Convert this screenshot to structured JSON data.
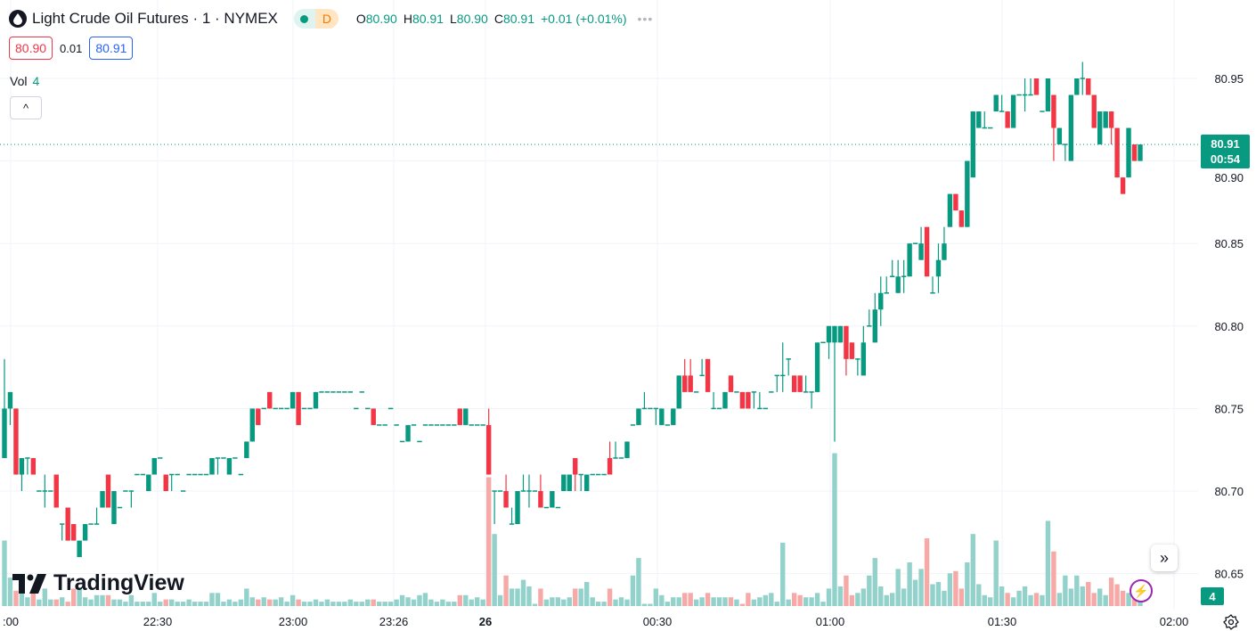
{
  "header": {
    "title": "Light Crude Oil Futures · 1 · NYMEX",
    "badge_letter": "D",
    "ohlc": [
      {
        "k": "O",
        "v": "80.90"
      },
      {
        "k": "H",
        "v": "80.91"
      },
      {
        "k": "L",
        "v": "80.90"
      },
      {
        "k": "C",
        "v": "80.91"
      }
    ],
    "change": "+0.01 (+0.01%)",
    "more": "•••"
  },
  "quote": {
    "bid": "80.90",
    "spread": "0.01",
    "ask": "80.91"
  },
  "volume_legend": {
    "label": "Vol",
    "value": "4"
  },
  "collapse_label": "^",
  "brand": "TradingView",
  "last_price": {
    "price": "80.91",
    "countdown": "00:54"
  },
  "last_volume": "4",
  "colors": {
    "up": "#089981",
    "down": "#f23645",
    "vol_up": "#92d2cb",
    "vol_down": "#f7a9a8"
  },
  "chart_data": {
    "type": "candlestick",
    "symbol": "Light Crude Oil Futures",
    "interval": "1",
    "exchange": "NYMEX",
    "ylim": [
      80.63,
      80.965
    ],
    "yticks": [
      "80.95",
      "80.90",
      "80.85",
      "80.80",
      "80.75",
      "80.70",
      "80.65"
    ],
    "xticks": [
      ":00",
      "22:30",
      "23:00",
      "23:26",
      "26",
      "00:30",
      "01:00",
      "01:30",
      "02:00"
    ],
    "current_price": 80.91,
    "candles_ohlcv": [
      [
        80.72,
        80.78,
        80.72,
        80.75,
        30
      ],
      [
        80.75,
        80.76,
        80.74,
        80.76,
        13
      ],
      [
        80.75,
        80.75,
        80.71,
        80.71,
        7
      ],
      [
        80.71,
        80.72,
        80.7,
        80.72,
        8
      ],
      [
        80.72,
        80.72,
        80.71,
        80.72,
        4
      ],
      [
        80.72,
        80.72,
        80.71,
        80.71,
        7
      ],
      [
        80.7,
        80.7,
        80.7,
        80.7,
        3
      ],
      [
        80.7,
        80.71,
        80.69,
        80.7,
        8
      ],
      [
        80.7,
        80.7,
        80.7,
        80.7,
        3
      ],
      [
        80.71,
        80.71,
        80.69,
        80.69,
        3
      ],
      [
        80.68,
        80.68,
        80.67,
        80.68,
        4
      ],
      [
        80.69,
        80.69,
        80.67,
        80.67,
        2
      ],
      [
        80.68,
        80.68,
        80.67,
        80.67,
        8
      ],
      [
        80.66,
        80.67,
        80.66,
        80.67,
        8
      ],
      [
        80.67,
        80.68,
        80.67,
        80.68,
        4
      ],
      [
        80.68,
        80.68,
        80.68,
        80.68,
        3
      ],
      [
        80.68,
        80.69,
        80.68,
        80.68,
        5
      ],
      [
        80.69,
        80.7,
        80.69,
        80.7,
        5
      ],
      [
        80.71,
        80.71,
        80.69,
        80.69,
        5
      ],
      [
        80.68,
        80.7,
        80.68,
        80.7,
        3
      ],
      [
        80.69,
        80.69,
        80.69,
        80.69,
        3
      ],
      [
        80.7,
        80.7,
        80.7,
        80.7,
        2
      ],
      [
        80.7,
        80.7,
        80.69,
        80.7,
        5
      ],
      [
        80.71,
        80.71,
        80.71,
        80.71,
        2
      ],
      [
        80.71,
        80.71,
        80.71,
        80.71,
        2
      ],
      [
        80.7,
        80.71,
        80.7,
        80.71,
        2
      ],
      [
        80.71,
        80.72,
        80.71,
        80.72,
        6
      ],
      [
        80.72,
        80.72,
        80.72,
        80.72,
        2
      ],
      [
        80.71,
        80.71,
        80.7,
        80.7,
        3
      ],
      [
        80.71,
        80.71,
        80.7,
        80.71,
        3
      ],
      [
        80.71,
        80.71,
        80.71,
        80.71,
        2
      ],
      [
        80.7,
        80.7,
        80.7,
        80.7,
        2
      ],
      [
        80.71,
        80.71,
        80.71,
        80.71,
        3
      ],
      [
        80.71,
        80.71,
        80.71,
        80.71,
        2
      ],
      [
        80.71,
        80.71,
        80.71,
        80.71,
        2
      ],
      [
        80.71,
        80.71,
        80.71,
        80.71,
        2
      ],
      [
        80.71,
        80.72,
        80.71,
        80.72,
        6
      ],
      [
        80.72,
        80.72,
        80.71,
        80.72,
        6
      ],
      [
        80.72,
        80.72,
        80.72,
        80.72,
        2
      ],
      [
        80.71,
        80.72,
        80.71,
        80.72,
        3
      ],
      [
        80.72,
        80.72,
        80.72,
        80.72,
        2
      ],
      [
        80.71,
        80.71,
        80.71,
        80.71,
        3
      ],
      [
        80.72,
        80.73,
        80.72,
        80.73,
        8
      ],
      [
        80.73,
        80.75,
        80.73,
        80.75,
        4
      ],
      [
        80.75,
        80.75,
        80.74,
        80.74,
        3
      ],
      [
        80.75,
        80.75,
        80.75,
        80.75,
        4
      ],
      [
        80.76,
        80.76,
        80.75,
        80.75,
        3
      ],
      [
        80.75,
        80.75,
        80.75,
        80.75,
        3
      ],
      [
        80.75,
        80.75,
        80.75,
        80.75,
        4
      ],
      [
        80.75,
        80.75,
        80.75,
        80.75,
        2
      ],
      [
        80.75,
        80.76,
        80.75,
        80.76,
        5
      ],
      [
        80.76,
        80.76,
        80.74,
        80.74,
        3
      ],
      [
        80.75,
        80.75,
        80.75,
        80.75,
        2
      ],
      [
        80.75,
        80.75,
        80.75,
        80.75,
        2
      ],
      [
        80.75,
        80.76,
        80.75,
        80.76,
        3
      ],
      [
        80.76,
        80.76,
        80.76,
        80.76,
        2
      ],
      [
        80.76,
        80.76,
        80.76,
        80.76,
        3
      ],
      [
        80.76,
        80.76,
        80.76,
        80.76,
        2
      ],
      [
        80.76,
        80.76,
        80.76,
        80.76,
        2
      ],
      [
        80.76,
        80.76,
        80.76,
        80.76,
        2
      ],
      [
        80.76,
        80.76,
        80.76,
        80.76,
        3
      ],
      [
        80.75,
        80.75,
        80.75,
        80.75,
        2
      ],
      [
        80.76,
        80.76,
        80.76,
        80.76,
        2
      ],
      [
        80.75,
        80.75,
        80.75,
        80.75,
        3
      ],
      [
        80.75,
        80.75,
        80.74,
        80.74,
        3
      ],
      [
        80.74,
        80.74,
        80.74,
        80.74,
        2
      ],
      [
        80.74,
        80.74,
        80.74,
        80.74,
        2
      ],
      [
        80.75,
        80.75,
        80.75,
        80.75,
        2
      ],
      [
        80.74,
        80.74,
        80.74,
        80.74,
        3
      ],
      [
        80.73,
        80.73,
        80.73,
        80.73,
        5
      ],
      [
        80.73,
        80.74,
        80.73,
        80.74,
        4
      ],
      [
        80.74,
        80.74,
        80.74,
        80.74,
        3
      ],
      [
        80.73,
        80.73,
        80.73,
        80.73,
        5
      ],
      [
        80.74,
        80.74,
        80.74,
        80.74,
        6
      ],
      [
        80.74,
        80.74,
        80.74,
        80.74,
        3
      ],
      [
        80.74,
        80.74,
        80.74,
        80.74,
        2
      ],
      [
        80.74,
        80.74,
        80.74,
        80.74,
        3
      ],
      [
        80.74,
        80.74,
        80.74,
        80.74,
        2
      ],
      [
        80.74,
        80.74,
        80.74,
        80.74,
        2
      ],
      [
        80.75,
        80.75,
        80.74,
        80.74,
        5
      ],
      [
        80.74,
        80.75,
        80.74,
        80.75,
        5
      ],
      [
        80.74,
        80.74,
        80.74,
        80.74,
        3
      ],
      [
        80.74,
        80.74,
        80.74,
        80.74,
        4
      ],
      [
        80.74,
        80.74,
        80.74,
        80.74,
        3
      ],
      [
        80.74,
        80.75,
        80.71,
        80.71,
        59
      ],
      [
        80.7,
        80.7,
        80.68,
        80.7,
        33
      ],
      [
        80.7,
        80.7,
        80.7,
        80.7,
        5
      ],
      [
        80.7,
        80.71,
        80.69,
        80.69,
        14
      ],
      [
        80.68,
        80.69,
        80.68,
        80.68,
        8
      ],
      [
        80.68,
        80.7,
        80.68,
        80.7,
        8
      ],
      [
        80.7,
        80.71,
        80.7,
        80.7,
        12
      ],
      [
        80.7,
        80.71,
        80.69,
        80.7,
        9
      ],
      [
        80.7,
        80.7,
        80.7,
        80.7,
        1
      ],
      [
        80.7,
        80.71,
        80.69,
        80.69,
        8
      ],
      [
        80.69,
        80.69,
        80.69,
        80.69,
        3
      ],
      [
        80.69,
        80.7,
        80.69,
        80.7,
        4
      ],
      [
        80.69,
        80.69,
        80.69,
        80.69,
        4
      ],
      [
        80.7,
        80.71,
        80.7,
        80.71,
        3
      ],
      [
        80.7,
        80.71,
        80.7,
        80.71,
        4
      ],
      [
        80.72,
        80.72,
        80.7,
        80.71,
        8
      ],
      [
        80.71,
        80.71,
        80.7,
        80.71,
        8
      ],
      [
        80.7,
        80.71,
        80.7,
        80.71,
        11
      ],
      [
        80.71,
        80.71,
        80.71,
        80.71,
        4
      ],
      [
        80.71,
        80.71,
        80.71,
        80.71,
        2
      ],
      [
        80.71,
        80.71,
        80.71,
        80.71,
        2
      ],
      [
        80.72,
        80.73,
        80.71,
        80.71,
        8
      ],
      [
        80.72,
        80.73,
        80.72,
        80.72,
        3
      ],
      [
        80.72,
        80.72,
        80.72,
        80.72,
        4
      ],
      [
        80.72,
        80.73,
        80.72,
        80.73,
        3
      ],
      [
        80.74,
        80.74,
        80.74,
        80.74,
        14
      ],
      [
        80.74,
        80.75,
        80.74,
        80.75,
        22
      ],
      [
        80.75,
        80.76,
        80.75,
        80.75,
        1
      ],
      [
        80.75,
        80.75,
        80.75,
        80.75,
        1
      ],
      [
        80.75,
        80.75,
        80.74,
        80.75,
        8
      ],
      [
        80.74,
        80.75,
        80.74,
        80.75,
        5
      ],
      [
        80.74,
        80.74,
        80.74,
        80.74,
        2
      ],
      [
        80.74,
        80.75,
        80.74,
        80.75,
        4
      ],
      [
        80.75,
        80.77,
        80.75,
        80.77,
        4
      ],
      [
        80.77,
        80.78,
        80.76,
        80.76,
        6
      ],
      [
        80.77,
        80.78,
        80.76,
        80.76,
        6
      ],
      [
        80.76,
        80.76,
        80.76,
        80.76,
        3
      ],
      [
        80.77,
        80.78,
        80.77,
        80.77,
        4
      ],
      [
        80.78,
        80.78,
        80.76,
        80.76,
        6
      ],
      [
        80.75,
        80.76,
        80.75,
        80.75,
        4
      ],
      [
        80.75,
        80.75,
        80.75,
        80.75,
        4
      ],
      [
        80.75,
        80.76,
        80.75,
        80.76,
        4
      ],
      [
        80.77,
        80.77,
        80.76,
        80.76,
        4
      ],
      [
        80.76,
        80.76,
        80.76,
        80.76,
        3
      ],
      [
        80.76,
        80.76,
        80.75,
        80.75,
        1
      ],
      [
        80.76,
        80.76,
        80.75,
        80.75,
        6
      ],
      [
        80.76,
        80.76,
        80.75,
        80.76,
        3
      ],
      [
        80.75,
        80.76,
        80.75,
        80.75,
        4
      ],
      [
        80.75,
        80.75,
        80.75,
        80.75,
        5
      ],
      [
        80.76,
        80.76,
        80.76,
        80.76,
        6
      ],
      [
        80.77,
        80.77,
        80.76,
        80.77,
        2
      ],
      [
        80.77,
        80.79,
        80.76,
        80.77,
        29
      ],
      [
        80.78,
        80.78,
        80.77,
        80.78,
        3
      ],
      [
        80.77,
        80.77,
        80.76,
        80.76,
        6
      ],
      [
        80.77,
        80.77,
        80.76,
        80.76,
        5
      ],
      [
        80.76,
        80.77,
        80.76,
        80.76,
        4
      ],
      [
        80.76,
        80.76,
        80.75,
        80.76,
        4
      ],
      [
        80.76,
        80.79,
        80.76,
        80.79,
        6
      ],
      [
        80.79,
        80.79,
        80.79,
        80.79,
        2
      ],
      [
        80.79,
        80.8,
        80.78,
        80.8,
        8
      ],
      [
        80.79,
        80.8,
        80.73,
        80.8,
        70
      ],
      [
        80.79,
        80.8,
        80.79,
        80.8,
        9
      ],
      [
        80.8,
        80.8,
        80.77,
        80.78,
        14
      ],
      [
        80.79,
        80.79,
        80.78,
        80.78,
        5
      ],
      [
        80.78,
        80.78,
        80.77,
        80.78,
        6
      ],
      [
        80.77,
        80.8,
        80.77,
        80.79,
        8
      ],
      [
        80.8,
        80.81,
        80.8,
        80.8,
        14
      ],
      [
        80.79,
        80.82,
        80.79,
        80.81,
        22
      ],
      [
        80.81,
        80.83,
        80.8,
        80.82,
        9
      ],
      [
        80.82,
        80.83,
        80.82,
        80.82,
        5
      ],
      [
        80.83,
        80.84,
        80.83,
        80.83,
        6
      ],
      [
        80.82,
        80.84,
        80.82,
        80.83,
        17
      ],
      [
        80.83,
        80.84,
        80.82,
        80.83,
        8
      ],
      [
        80.83,
        80.85,
        80.83,
        80.85,
        20
      ],
      [
        80.85,
        80.85,
        80.85,
        80.85,
        12
      ],
      [
        80.84,
        80.86,
        80.84,
        80.85,
        17
      ],
      [
        80.86,
        80.86,
        80.83,
        80.83,
        31
      ],
      [
        80.82,
        80.83,
        80.82,
        80.82,
        10
      ],
      [
        80.83,
        80.85,
        80.82,
        80.84,
        11
      ],
      [
        80.84,
        80.86,
        80.84,
        80.85,
        7
      ],
      [
        80.86,
        80.88,
        80.86,
        80.88,
        15
      ],
      [
        80.88,
        80.88,
        80.87,
        80.87,
        16
      ],
      [
        80.87,
        80.87,
        80.86,
        80.86,
        8
      ],
      [
        80.86,
        80.9,
        80.86,
        80.9,
        20
      ],
      [
        80.89,
        80.93,
        80.89,
        80.93,
        33
      ],
      [
        80.92,
        80.93,
        80.92,
        80.93,
        10
      ],
      [
        80.92,
        80.93,
        80.92,
        80.92,
        5
      ],
      [
        80.92,
        80.92,
        80.92,
        80.92,
        4
      ],
      [
        80.93,
        80.94,
        80.93,
        80.94,
        30
      ],
      [
        80.93,
        80.94,
        80.93,
        80.93,
        9
      ],
      [
        80.93,
        80.93,
        80.92,
        80.92,
        6
      ],
      [
        80.92,
        80.94,
        80.92,
        80.94,
        4
      ],
      [
        80.94,
        80.94,
        80.94,
        80.94,
        7
      ],
      [
        80.94,
        80.95,
        80.93,
        80.94,
        9
      ],
      [
        80.94,
        80.95,
        80.94,
        80.94,
        5
      ],
      [
        80.95,
        80.95,
        80.94,
        80.94,
        6
      ],
      [
        80.93,
        80.93,
        80.93,
        80.93,
        5
      ],
      [
        80.93,
        80.95,
        80.93,
        80.95,
        39
      ],
      [
        80.94,
        80.94,
        80.9,
        80.92,
        25
      ],
      [
        80.91,
        80.92,
        80.91,
        80.92,
        6
      ],
      [
        80.91,
        80.91,
        80.9,
        80.91,
        14
      ],
      [
        80.9,
        80.94,
        80.9,
        80.94,
        8
      ],
      [
        80.94,
        80.95,
        80.94,
        80.95,
        14
      ],
      [
        80.95,
        80.96,
        80.94,
        80.95,
        9
      ],
      [
        80.95,
        80.95,
        80.94,
        80.94,
        11
      ],
      [
        80.94,
        80.94,
        80.92,
        80.92,
        6
      ],
      [
        80.91,
        80.93,
        80.91,
        80.93,
        8
      ],
      [
        80.92,
        80.93,
        80.92,
        80.93,
        5
      ],
      [
        80.93,
        80.93,
        80.91,
        80.92,
        13
      ],
      [
        80.92,
        80.92,
        80.89,
        80.89,
        10
      ],
      [
        80.89,
        80.89,
        80.88,
        80.88,
        7
      ],
      [
        80.89,
        80.92,
        80.89,
        80.92,
        6
      ],
      [
        80.91,
        80.91,
        80.9,
        80.9,
        6
      ],
      [
        80.9,
        80.91,
        80.9,
        80.91,
        4
      ]
    ]
  }
}
